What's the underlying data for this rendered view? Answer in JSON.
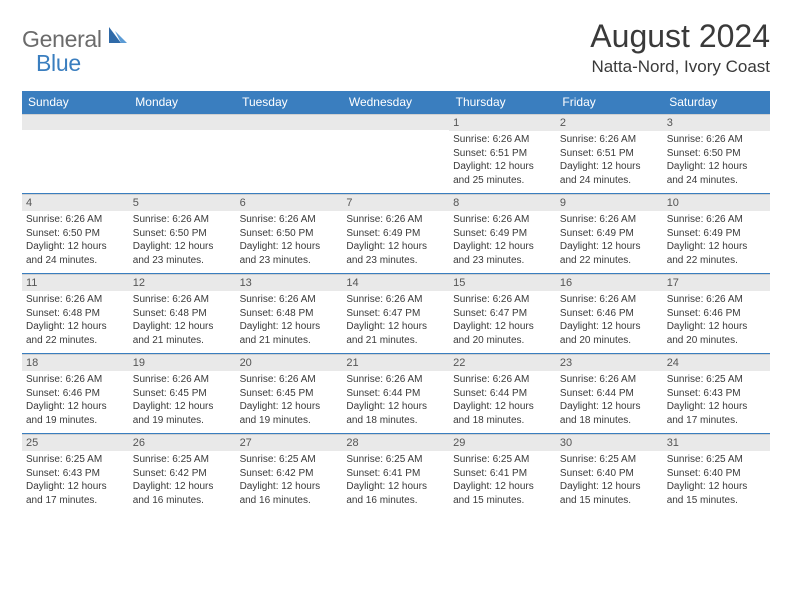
{
  "logo": {
    "text1": "General",
    "text2": "Blue"
  },
  "title": "August 2024",
  "location": "Natta-Nord, Ivory Coast",
  "colors": {
    "header_bg": "#3a7ebf",
    "header_text": "#ffffff",
    "daynum_bg": "#e9e9e9",
    "border": "#3a7ebf",
    "logo_gray": "#6b6b6b",
    "logo_blue": "#3a7ebf",
    "body_text": "#3a3a3a"
  },
  "typography": {
    "month_title_size": 32,
    "location_size": 17,
    "header_cell_size": 12,
    "daynum_size": 11,
    "body_size": 10
  },
  "weekdays": [
    "Sunday",
    "Monday",
    "Tuesday",
    "Wednesday",
    "Thursday",
    "Friday",
    "Saturday"
  ],
  "weeks": [
    [
      {
        "n": "",
        "sr": "",
        "ss": "",
        "dl": ""
      },
      {
        "n": "",
        "sr": "",
        "ss": "",
        "dl": ""
      },
      {
        "n": "",
        "sr": "",
        "ss": "",
        "dl": ""
      },
      {
        "n": "",
        "sr": "",
        "ss": "",
        "dl": ""
      },
      {
        "n": "1",
        "sr": "Sunrise: 6:26 AM",
        "ss": "Sunset: 6:51 PM",
        "dl": "Daylight: 12 hours and 25 minutes."
      },
      {
        "n": "2",
        "sr": "Sunrise: 6:26 AM",
        "ss": "Sunset: 6:51 PM",
        "dl": "Daylight: 12 hours and 24 minutes."
      },
      {
        "n": "3",
        "sr": "Sunrise: 6:26 AM",
        "ss": "Sunset: 6:50 PM",
        "dl": "Daylight: 12 hours and 24 minutes."
      }
    ],
    [
      {
        "n": "4",
        "sr": "Sunrise: 6:26 AM",
        "ss": "Sunset: 6:50 PM",
        "dl": "Daylight: 12 hours and 24 minutes."
      },
      {
        "n": "5",
        "sr": "Sunrise: 6:26 AM",
        "ss": "Sunset: 6:50 PM",
        "dl": "Daylight: 12 hours and 23 minutes."
      },
      {
        "n": "6",
        "sr": "Sunrise: 6:26 AM",
        "ss": "Sunset: 6:50 PM",
        "dl": "Daylight: 12 hours and 23 minutes."
      },
      {
        "n": "7",
        "sr": "Sunrise: 6:26 AM",
        "ss": "Sunset: 6:49 PM",
        "dl": "Daylight: 12 hours and 23 minutes."
      },
      {
        "n": "8",
        "sr": "Sunrise: 6:26 AM",
        "ss": "Sunset: 6:49 PM",
        "dl": "Daylight: 12 hours and 23 minutes."
      },
      {
        "n": "9",
        "sr": "Sunrise: 6:26 AM",
        "ss": "Sunset: 6:49 PM",
        "dl": "Daylight: 12 hours and 22 minutes."
      },
      {
        "n": "10",
        "sr": "Sunrise: 6:26 AM",
        "ss": "Sunset: 6:49 PM",
        "dl": "Daylight: 12 hours and 22 minutes."
      }
    ],
    [
      {
        "n": "11",
        "sr": "Sunrise: 6:26 AM",
        "ss": "Sunset: 6:48 PM",
        "dl": "Daylight: 12 hours and 22 minutes."
      },
      {
        "n": "12",
        "sr": "Sunrise: 6:26 AM",
        "ss": "Sunset: 6:48 PM",
        "dl": "Daylight: 12 hours and 21 minutes."
      },
      {
        "n": "13",
        "sr": "Sunrise: 6:26 AM",
        "ss": "Sunset: 6:48 PM",
        "dl": "Daylight: 12 hours and 21 minutes."
      },
      {
        "n": "14",
        "sr": "Sunrise: 6:26 AM",
        "ss": "Sunset: 6:47 PM",
        "dl": "Daylight: 12 hours and 21 minutes."
      },
      {
        "n": "15",
        "sr": "Sunrise: 6:26 AM",
        "ss": "Sunset: 6:47 PM",
        "dl": "Daylight: 12 hours and 20 minutes."
      },
      {
        "n": "16",
        "sr": "Sunrise: 6:26 AM",
        "ss": "Sunset: 6:46 PM",
        "dl": "Daylight: 12 hours and 20 minutes."
      },
      {
        "n": "17",
        "sr": "Sunrise: 6:26 AM",
        "ss": "Sunset: 6:46 PM",
        "dl": "Daylight: 12 hours and 20 minutes."
      }
    ],
    [
      {
        "n": "18",
        "sr": "Sunrise: 6:26 AM",
        "ss": "Sunset: 6:46 PM",
        "dl": "Daylight: 12 hours and 19 minutes."
      },
      {
        "n": "19",
        "sr": "Sunrise: 6:26 AM",
        "ss": "Sunset: 6:45 PM",
        "dl": "Daylight: 12 hours and 19 minutes."
      },
      {
        "n": "20",
        "sr": "Sunrise: 6:26 AM",
        "ss": "Sunset: 6:45 PM",
        "dl": "Daylight: 12 hours and 19 minutes."
      },
      {
        "n": "21",
        "sr": "Sunrise: 6:26 AM",
        "ss": "Sunset: 6:44 PM",
        "dl": "Daylight: 12 hours and 18 minutes."
      },
      {
        "n": "22",
        "sr": "Sunrise: 6:26 AM",
        "ss": "Sunset: 6:44 PM",
        "dl": "Daylight: 12 hours and 18 minutes."
      },
      {
        "n": "23",
        "sr": "Sunrise: 6:26 AM",
        "ss": "Sunset: 6:44 PM",
        "dl": "Daylight: 12 hours and 18 minutes."
      },
      {
        "n": "24",
        "sr": "Sunrise: 6:25 AM",
        "ss": "Sunset: 6:43 PM",
        "dl": "Daylight: 12 hours and 17 minutes."
      }
    ],
    [
      {
        "n": "25",
        "sr": "Sunrise: 6:25 AM",
        "ss": "Sunset: 6:43 PM",
        "dl": "Daylight: 12 hours and 17 minutes."
      },
      {
        "n": "26",
        "sr": "Sunrise: 6:25 AM",
        "ss": "Sunset: 6:42 PM",
        "dl": "Daylight: 12 hours and 16 minutes."
      },
      {
        "n": "27",
        "sr": "Sunrise: 6:25 AM",
        "ss": "Sunset: 6:42 PM",
        "dl": "Daylight: 12 hours and 16 minutes."
      },
      {
        "n": "28",
        "sr": "Sunrise: 6:25 AM",
        "ss": "Sunset: 6:41 PM",
        "dl": "Daylight: 12 hours and 16 minutes."
      },
      {
        "n": "29",
        "sr": "Sunrise: 6:25 AM",
        "ss": "Sunset: 6:41 PM",
        "dl": "Daylight: 12 hours and 15 minutes."
      },
      {
        "n": "30",
        "sr": "Sunrise: 6:25 AM",
        "ss": "Sunset: 6:40 PM",
        "dl": "Daylight: 12 hours and 15 minutes."
      },
      {
        "n": "31",
        "sr": "Sunrise: 6:25 AM",
        "ss": "Sunset: 6:40 PM",
        "dl": "Daylight: 12 hours and 15 minutes."
      }
    ]
  ]
}
